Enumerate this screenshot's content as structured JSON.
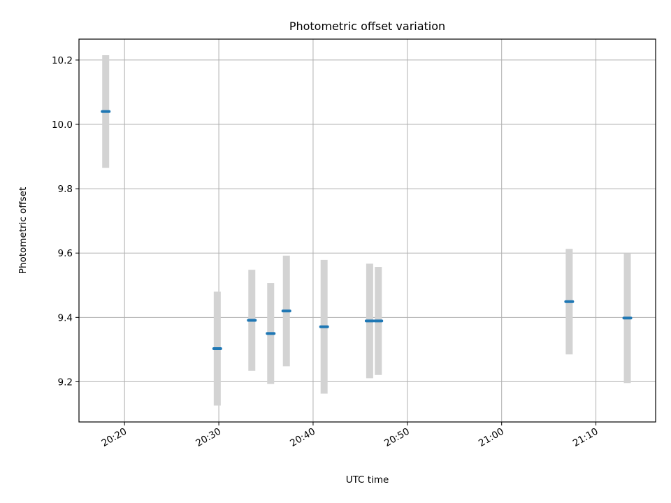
{
  "chart_data": {
    "type": "scatter",
    "title": "Photometric offset variation",
    "xlabel": "UTC time",
    "ylabel": "Photometric offset",
    "x_axis_kind": "time",
    "xlim": [
      "20:15:10",
      "21:16:20"
    ],
    "ylim": [
      9.075,
      10.265
    ],
    "x_ticks": [
      "20:20",
      "20:30",
      "20:40",
      "20:50",
      "21:00",
      "21:10"
    ],
    "y_ticks": [
      9.2,
      9.4,
      9.6,
      9.8,
      10.0,
      10.2
    ],
    "grid": true,
    "legend": "none",
    "colors": {
      "marker": "#1f77b4",
      "errorbar": "#d3d3d3",
      "grid": "#b0b0b0"
    },
    "series": [
      {
        "points": [
          {
            "t": "20:18:00",
            "y": 10.04,
            "err": 0.175
          },
          {
            "t": "20:29:50",
            "y": 9.303,
            "err": 0.177
          },
          {
            "t": "20:33:30",
            "y": 9.391,
            "err": 0.157
          },
          {
            "t": "20:35:30",
            "y": 9.35,
            "err": 0.157
          },
          {
            "t": "20:37:10",
            "y": 9.42,
            "err": 0.172
          },
          {
            "t": "20:41:10",
            "y": 9.371,
            "err": 0.208
          },
          {
            "t": "20:46:00",
            "y": 9.389,
            "err": 0.178
          },
          {
            "t": "20:46:55",
            "y": 9.389,
            "err": 0.168
          },
          {
            "t": "21:07:10",
            "y": 9.449,
            "err": 0.164
          },
          {
            "t": "21:13:20",
            "y": 9.398,
            "err": 0.202
          }
        ]
      }
    ]
  }
}
